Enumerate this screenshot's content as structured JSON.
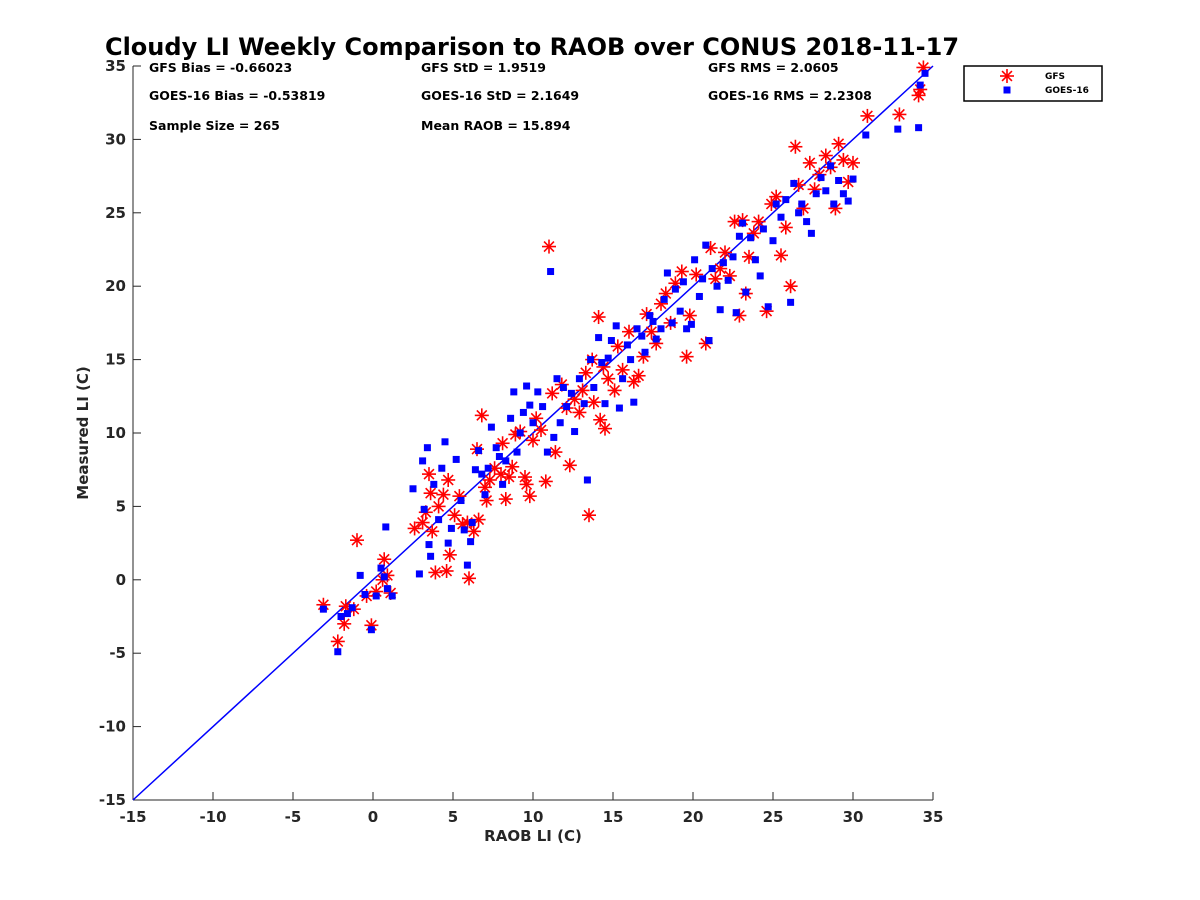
{
  "chart_data": {
    "type": "scatter",
    "title": "Cloudy LI Weekly Comparison to RAOB over CONUS 2018-11-17",
    "xlabel": "RAOB LI (C)",
    "ylabel": "Measured LI (C)",
    "xlim": [
      -15,
      35
    ],
    "ylim": [
      -15,
      35
    ],
    "xticks": [
      -15,
      -10,
      -5,
      0,
      5,
      10,
      15,
      20,
      25,
      30,
      35
    ],
    "yticks": [
      -15,
      -10,
      -5,
      0,
      5,
      10,
      15,
      20,
      25,
      30,
      35
    ],
    "grid": false,
    "legend_position": "outside top-right",
    "reference_line": {
      "from": [
        -15,
        -15
      ],
      "to": [
        35,
        35
      ],
      "color": "#0000ff"
    },
    "stats": {
      "gfs_bias": "GFS Bias = -0.66023",
      "goes_bias": "GOES-16 Bias = -0.53819",
      "sample_size": "Sample Size = 265",
      "gfs_std": "GFS StD = 1.9519",
      "goes_std": "GOES-16 StD = 2.1649",
      "mean_raob": "Mean RAOB = 15.894",
      "gfs_rms": "GFS RMS = 2.0605",
      "goes_rms": "GOES-16 RMS = 2.2308"
    },
    "series": [
      {
        "name": "GFS",
        "marker": "asterisk",
        "color": "#ff0000",
        "points": [
          [
            -3.1,
            -1.7
          ],
          [
            -2.2,
            -4.2
          ],
          [
            -1.8,
            -3.0
          ],
          [
            -1.7,
            -1.8
          ],
          [
            -1.2,
            -2.0
          ],
          [
            -1.0,
            2.7
          ],
          [
            -0.4,
            -1.1
          ],
          [
            -0.1,
            -3.1
          ],
          [
            0.2,
            -0.8
          ],
          [
            0.6,
            0.0
          ],
          [
            0.7,
            1.4
          ],
          [
            0.9,
            0.3
          ],
          [
            1.1,
            -0.9
          ],
          [
            2.6,
            3.5
          ],
          [
            3.1,
            3.9
          ],
          [
            3.3,
            4.6
          ],
          [
            3.5,
            7.2
          ],
          [
            3.6,
            5.9
          ],
          [
            3.7,
            3.3
          ],
          [
            3.9,
            0.5
          ],
          [
            4.1,
            5.0
          ],
          [
            4.4,
            5.8
          ],
          [
            4.6,
            0.6
          ],
          [
            4.7,
            6.8
          ],
          [
            4.8,
            1.7
          ],
          [
            5.1,
            4.4
          ],
          [
            5.4,
            5.7
          ],
          [
            5.6,
            3.8
          ],
          [
            5.9,
            3.9
          ],
          [
            6.0,
            0.1
          ],
          [
            6.3,
            3.3
          ],
          [
            6.5,
            8.9
          ],
          [
            6.6,
            4.1
          ],
          [
            6.8,
            11.2
          ],
          [
            7.0,
            6.3
          ],
          [
            7.1,
            5.4
          ],
          [
            7.3,
            6.8
          ],
          [
            7.6,
            7.6
          ],
          [
            8.0,
            7.2
          ],
          [
            8.1,
            9.3
          ],
          [
            8.3,
            5.5
          ],
          [
            8.5,
            7.0
          ],
          [
            8.7,
            7.7
          ],
          [
            8.9,
            9.9
          ],
          [
            9.2,
            10.1
          ],
          [
            9.5,
            7.0
          ],
          [
            9.6,
            6.5
          ],
          [
            9.8,
            5.7
          ],
          [
            10.0,
            9.5
          ],
          [
            10.2,
            11.0
          ],
          [
            10.5,
            10.2
          ],
          [
            10.8,
            6.7
          ],
          [
            11.0,
            22.7
          ],
          [
            11.2,
            12.7
          ],
          [
            11.4,
            8.7
          ],
          [
            11.8,
            13.3
          ],
          [
            12.1,
            11.7
          ],
          [
            12.3,
            7.8
          ],
          [
            12.6,
            12.3
          ],
          [
            12.9,
            11.4
          ],
          [
            13.1,
            12.9
          ],
          [
            13.3,
            14.1
          ],
          [
            13.5,
            4.4
          ],
          [
            13.7,
            15.0
          ],
          [
            13.8,
            12.1
          ],
          [
            14.1,
            17.9
          ],
          [
            14.2,
            10.9
          ],
          [
            14.4,
            14.5
          ],
          [
            14.5,
            10.3
          ],
          [
            14.7,
            13.7
          ],
          [
            15.1,
            12.9
          ],
          [
            15.3,
            15.9
          ],
          [
            15.6,
            14.3
          ],
          [
            16.0,
            16.9
          ],
          [
            16.3,
            13.5
          ],
          [
            16.6,
            13.9
          ],
          [
            16.9,
            15.2
          ],
          [
            17.1,
            18.1
          ],
          [
            17.4,
            16.9
          ],
          [
            17.7,
            16.1
          ],
          [
            18.0,
            18.8
          ],
          [
            18.3,
            19.5
          ],
          [
            18.6,
            17.5
          ],
          [
            18.9,
            20.2
          ],
          [
            19.3,
            21.0
          ],
          [
            19.6,
            15.2
          ],
          [
            19.8,
            18.0
          ],
          [
            20.2,
            20.8
          ],
          [
            20.8,
            16.1
          ],
          [
            21.1,
            22.6
          ],
          [
            21.4,
            20.5
          ],
          [
            21.7,
            21.2
          ],
          [
            22.0,
            22.3
          ],
          [
            22.3,
            20.7
          ],
          [
            22.6,
            24.4
          ],
          [
            22.9,
            18.0
          ],
          [
            23.1,
            24.5
          ],
          [
            23.3,
            19.5
          ],
          [
            23.5,
            22.0
          ],
          [
            23.8,
            23.6
          ],
          [
            24.1,
            24.4
          ],
          [
            24.6,
            18.3
          ],
          [
            24.9,
            25.6
          ],
          [
            25.2,
            26.1
          ],
          [
            25.5,
            22.1
          ],
          [
            25.8,
            24.0
          ],
          [
            26.1,
            20.0
          ],
          [
            26.4,
            29.5
          ],
          [
            26.6,
            26.9
          ],
          [
            26.9,
            25.3
          ],
          [
            27.3,
            28.4
          ],
          [
            27.6,
            26.6
          ],
          [
            27.9,
            27.6
          ],
          [
            28.3,
            28.9
          ],
          [
            28.6,
            28.1
          ],
          [
            28.9,
            25.3
          ],
          [
            29.1,
            29.7
          ],
          [
            29.4,
            28.6
          ],
          [
            29.7,
            27.1
          ],
          [
            30.0,
            28.4
          ],
          [
            30.9,
            31.6
          ],
          [
            32.9,
            31.7
          ],
          [
            34.1,
            33.0
          ],
          [
            34.4,
            34.9
          ],
          [
            34.2,
            33.4
          ]
        ]
      },
      {
        "name": "GOES-16",
        "marker": "square",
        "color": "#0000ff",
        "points": [
          [
            -3.1,
            -2.0
          ],
          [
            -2.2,
            -4.9
          ],
          [
            -2.0,
            -2.5
          ],
          [
            -1.6,
            -2.3
          ],
          [
            -1.3,
            -1.9
          ],
          [
            -0.8,
            0.3
          ],
          [
            -0.5,
            -1.0
          ],
          [
            -0.1,
            -3.4
          ],
          [
            0.2,
            -1.1
          ],
          [
            0.5,
            0.8
          ],
          [
            0.7,
            0.2
          ],
          [
            0.8,
            3.6
          ],
          [
            0.9,
            -0.6
          ],
          [
            1.2,
            -1.1
          ],
          [
            2.5,
            6.2
          ],
          [
            2.9,
            0.4
          ],
          [
            3.1,
            8.1
          ],
          [
            3.2,
            4.8
          ],
          [
            3.4,
            9.0
          ],
          [
            3.5,
            2.4
          ],
          [
            3.6,
            1.6
          ],
          [
            3.8,
            6.5
          ],
          [
            4.1,
            4.1
          ],
          [
            4.3,
            7.6
          ],
          [
            4.5,
            9.4
          ],
          [
            4.7,
            2.5
          ],
          [
            4.9,
            3.5
          ],
          [
            5.2,
            8.2
          ],
          [
            5.5,
            5.4
          ],
          [
            5.7,
            3.4
          ],
          [
            5.9,
            1.0
          ],
          [
            6.1,
            2.6
          ],
          [
            6.2,
            3.9
          ],
          [
            6.4,
            7.5
          ],
          [
            6.6,
            8.8
          ],
          [
            6.8,
            7.2
          ],
          [
            7.0,
            5.8
          ],
          [
            7.2,
            7.6
          ],
          [
            7.4,
            10.4
          ],
          [
            7.7,
            9.0
          ],
          [
            7.9,
            8.4
          ],
          [
            8.1,
            6.5
          ],
          [
            8.3,
            8.1
          ],
          [
            8.6,
            11.0
          ],
          [
            8.8,
            12.8
          ],
          [
            9.0,
            8.7
          ],
          [
            9.2,
            10.0
          ],
          [
            9.4,
            11.4
          ],
          [
            9.6,
            13.2
          ],
          [
            9.8,
            11.9
          ],
          [
            10.0,
            10.7
          ],
          [
            10.3,
            12.8
          ],
          [
            10.6,
            11.8
          ],
          [
            10.9,
            8.7
          ],
          [
            11.1,
            21.0
          ],
          [
            11.3,
            9.7
          ],
          [
            11.5,
            13.7
          ],
          [
            11.7,
            10.7
          ],
          [
            11.9,
            13.1
          ],
          [
            12.1,
            11.8
          ],
          [
            12.4,
            12.7
          ],
          [
            12.6,
            10.1
          ],
          [
            12.9,
            13.7
          ],
          [
            13.2,
            12.0
          ],
          [
            13.4,
            6.8
          ],
          [
            13.6,
            15.0
          ],
          [
            13.8,
            13.1
          ],
          [
            14.1,
            16.5
          ],
          [
            14.3,
            14.8
          ],
          [
            14.5,
            12.0
          ],
          [
            14.7,
            15.1
          ],
          [
            14.9,
            16.3
          ],
          [
            15.2,
            17.3
          ],
          [
            15.4,
            11.7
          ],
          [
            15.6,
            13.7
          ],
          [
            15.9,
            16.0
          ],
          [
            16.1,
            15.0
          ],
          [
            16.3,
            12.1
          ],
          [
            16.5,
            17.1
          ],
          [
            16.8,
            16.6
          ],
          [
            17.0,
            15.5
          ],
          [
            17.3,
            18.0
          ],
          [
            17.5,
            17.6
          ],
          [
            17.7,
            16.4
          ],
          [
            18.0,
            17.1
          ],
          [
            18.2,
            19.1
          ],
          [
            18.4,
            20.9
          ],
          [
            18.7,
            17.5
          ],
          [
            18.9,
            19.8
          ],
          [
            19.2,
            18.3
          ],
          [
            19.4,
            20.3
          ],
          [
            19.6,
            17.1
          ],
          [
            19.9,
            17.4
          ],
          [
            20.1,
            21.8
          ],
          [
            20.4,
            19.3
          ],
          [
            20.6,
            20.5
          ],
          [
            20.8,
            22.8
          ],
          [
            21.0,
            16.3
          ],
          [
            21.2,
            21.2
          ],
          [
            21.5,
            20.0
          ],
          [
            21.7,
            18.4
          ],
          [
            21.9,
            21.6
          ],
          [
            22.2,
            20.4
          ],
          [
            22.5,
            22.0
          ],
          [
            22.7,
            18.2
          ],
          [
            22.9,
            23.4
          ],
          [
            23.1,
            24.3
          ],
          [
            23.3,
            19.6
          ],
          [
            23.6,
            23.3
          ],
          [
            23.9,
            21.8
          ],
          [
            24.2,
            20.7
          ],
          [
            24.4,
            23.9
          ],
          [
            24.7,
            18.6
          ],
          [
            25.0,
            23.1
          ],
          [
            25.2,
            25.6
          ],
          [
            25.5,
            24.7
          ],
          [
            25.8,
            25.9
          ],
          [
            26.1,
            18.9
          ],
          [
            26.3,
            27.0
          ],
          [
            26.6,
            25.0
          ],
          [
            26.8,
            25.6
          ],
          [
            27.1,
            24.4
          ],
          [
            27.4,
            23.6
          ],
          [
            27.7,
            26.3
          ],
          [
            28.0,
            27.4
          ],
          [
            28.3,
            26.5
          ],
          [
            28.6,
            28.2
          ],
          [
            28.8,
            25.6
          ],
          [
            29.1,
            27.2
          ],
          [
            29.4,
            26.3
          ],
          [
            29.7,
            25.8
          ],
          [
            30.0,
            27.3
          ],
          [
            30.8,
            30.3
          ],
          [
            32.8,
            30.7
          ],
          [
            34.1,
            30.8
          ],
          [
            34.2,
            33.7
          ],
          [
            34.5,
            34.5
          ]
        ]
      }
    ]
  }
}
